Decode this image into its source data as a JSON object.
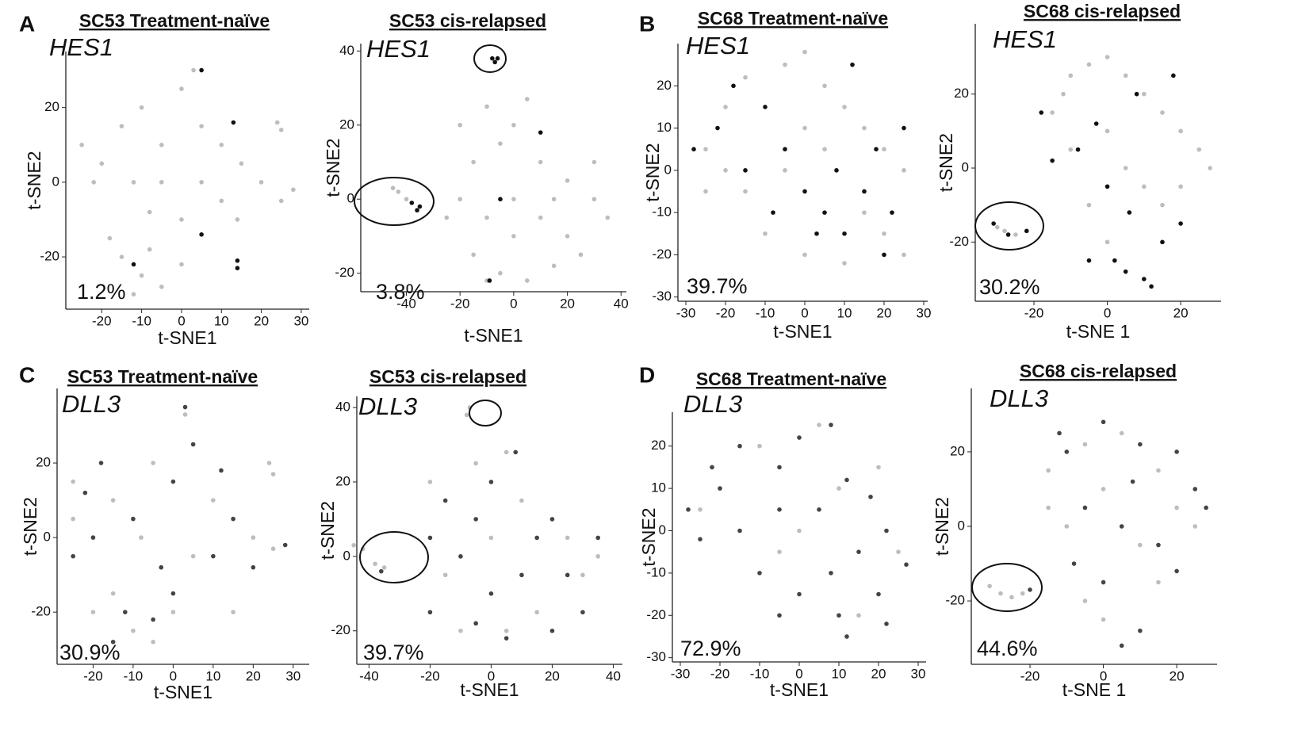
{
  "chart_data": [
    {
      "type": "scatter",
      "panel": "A",
      "title": "SC53 Treatment-naïve",
      "gene": "HES1",
      "annotation": "1.2%",
      "xlabel": "t-SNE1",
      "ylabel": "t-SNE2",
      "xlim": [
        -29,
        32
      ],
      "ylim": [
        -34,
        35
      ],
      "xticks": [
        -20,
        -10,
        0,
        10,
        20,
        30
      ],
      "yticks": [
        -20,
        0,
        20
      ],
      "series": [
        {
          "color": "#bdbdbd",
          "x": [
            -25,
            -20,
            -15,
            -10,
            -5,
            0,
            3,
            5,
            10,
            15,
            20,
            25,
            28,
            -22,
            -12,
            -5,
            5,
            10,
            -8,
            0,
            24,
            25,
            -15,
            -10,
            -5,
            -18,
            -8,
            0,
            -12,
            14
          ],
          "values": [
            10,
            5,
            15,
            20,
            10,
            25,
            30,
            15,
            10,
            5,
            0,
            -5,
            -2,
            0,
            0,
            0,
            0,
            -5,
            -8,
            -10,
            16,
            14,
            -20,
            -25,
            -28,
            -15,
            -18,
            -22,
            -30,
            -10
          ]
        },
        {
          "color": "#111111",
          "x": [
            14,
            14,
            5,
            -12,
            13,
            5
          ],
          "values": [
            -21,
            -23,
            30,
            -22,
            16,
            -14
          ]
        }
      ]
    },
    {
      "type": "scatter",
      "title": "SC53 cis-relapsed",
      "gene": "HES1",
      "annotation": "3.8%",
      "xlabel": "t-SNE1",
      "ylabel": "t-SNE2",
      "xlim": [
        -57,
        42
      ],
      "ylim": [
        -25,
        42
      ],
      "xticks": [
        -40,
        -20,
        0,
        20,
        40
      ],
      "yticks": [
        -20,
        0,
        20,
        40
      ],
      "series": [
        {
          "color": "#bdbdbd",
          "x": [
            -45,
            -43,
            -40,
            -20,
            -15,
            -10,
            -5,
            0,
            5,
            10,
            20,
            30,
            35,
            -20,
            -10,
            0,
            10,
            20,
            25,
            -15,
            -5,
            5,
            15,
            -10,
            30,
            -25,
            0,
            15
          ],
          "values": [
            3,
            2,
            0,
            20,
            10,
            25,
            15,
            20,
            27,
            10,
            5,
            0,
            -5,
            0,
            -5,
            0,
            -5,
            -10,
            -15,
            -15,
            -20,
            -22,
            -18,
            -22,
            10,
            -5,
            -10,
            0
          ]
        },
        {
          "color": "#111111",
          "x": [
            -8,
            -7,
            -6,
            -38,
            -36,
            -35,
            -9,
            10,
            -5
          ],
          "values": [
            38,
            37,
            38,
            -1,
            -3,
            -2,
            -22,
            18,
            0
          ]
        }
      ]
    },
    {
      "type": "scatter",
      "panel": "B",
      "title": "SC68 Treatment-naïve",
      "gene": "HES1",
      "annotation": "39.7%",
      "xlabel": "t-SNE1",
      "ylabel": "t-SNE2",
      "xlim": [
        -32,
        31
      ],
      "ylim": [
        -31,
        30
      ],
      "xticks": [
        -30,
        -20,
        -10,
        0,
        10,
        20,
        30
      ],
      "yticks": [
        -30,
        -20,
        -10,
        0,
        10,
        20
      ],
      "series": [
        {
          "color": "#bdbdbd",
          "x": [
            -25,
            -20,
            -15,
            -5,
            0,
            5,
            10,
            15,
            20,
            25,
            -25,
            -15,
            -5,
            5,
            15,
            20,
            -10,
            0,
            10,
            25,
            -20,
            0
          ],
          "values": [
            5,
            15,
            22,
            25,
            28,
            20,
            15,
            10,
            5,
            0,
            -5,
            -5,
            0,
            5,
            -10,
            -15,
            -15,
            -20,
            -22,
            -20,
            0,
            10
          ]
        },
        {
          "color": "#111111",
          "x": [
            -28,
            -22,
            -18,
            -10,
            -5,
            0,
            5,
            10,
            15,
            20,
            22,
            -15,
            8,
            12,
            -8,
            3,
            18,
            25
          ],
          "values": [
            5,
            10,
            20,
            15,
            5,
            -5,
            -10,
            -15,
            -5,
            -20,
            -10,
            0,
            0,
            25,
            -10,
            -15,
            5,
            10
          ]
        }
      ]
    },
    {
      "type": "scatter",
      "title": "SC68 cis-relapsed",
      "gene": "HES1",
      "annotation": "30.2%",
      "xlabel": "t-SNE 1",
      "ylabel": "t-SNE2",
      "xlim": [
        -36,
        31
      ],
      "ylim": [
        -36,
        39
      ],
      "xticks": [
        -20,
        0,
        20
      ],
      "yticks": [
        -20,
        0,
        20
      ],
      "series": [
        {
          "color": "#bdbdbd",
          "x": [
            -30,
            -28,
            -25,
            -15,
            -10,
            -5,
            0,
            5,
            10,
            15,
            20,
            25,
            -10,
            0,
            5,
            10,
            15,
            -5,
            0,
            20,
            -12,
            28
          ],
          "values": [
            -16,
            -17,
            -18,
            15,
            25,
            28,
            30,
            25,
            20,
            15,
            10,
            5,
            5,
            10,
            0,
            -5,
            -10,
            -10,
            -20,
            -5,
            20,
            0
          ]
        },
        {
          "color": "#111111",
          "x": [
            -31,
            -27,
            -22,
            -18,
            -8,
            0,
            2,
            5,
            10,
            12,
            15,
            20,
            -3,
            8,
            -15,
            6,
            18,
            -5
          ],
          "values": [
            -15,
            -18,
            -17,
            15,
            5,
            -5,
            -25,
            -28,
            -30,
            -32,
            -20,
            -15,
            12,
            20,
            2,
            -12,
            25,
            -25
          ]
        }
      ]
    },
    {
      "type": "scatter",
      "panel": "C",
      "title": "SC53 Treatment-naïve",
      "gene": "DLL3",
      "annotation": "30.9%",
      "xlabel": "t-SNE1",
      "ylabel": "t-SNE2",
      "xlim": [
        -29,
        34
      ],
      "ylim": [
        -34,
        40
      ],
      "xticks": [
        -20,
        -10,
        0,
        10,
        20,
        30
      ],
      "yticks": [
        -20,
        0,
        20
      ],
      "series": [
        {
          "color": "#bdbdbd",
          "x": [
            -25,
            -15,
            -5,
            3,
            10,
            20,
            25,
            24,
            25,
            -20,
            -10,
            -5,
            -15,
            0,
            15,
            -25,
            -8,
            5
          ],
          "values": [
            15,
            10,
            20,
            33,
            10,
            0,
            -3,
            20,
            17,
            -20,
            -25,
            -28,
            -15,
            -20,
            -20,
            5,
            0,
            -5
          ]
        },
        {
          "color": "#444444",
          "x": [
            -22,
            -18,
            -10,
            0,
            3,
            5,
            10,
            15,
            28,
            -20,
            -12,
            -15,
            -5,
            0,
            -25,
            12,
            -3,
            20
          ],
          "values": [
            12,
            20,
            5,
            15,
            35,
            25,
            -5,
            5,
            -2,
            0,
            -20,
            -28,
            -22,
            -15,
            -5,
            18,
            -8,
            -8
          ]
        }
      ]
    },
    {
      "type": "scatter",
      "title": "SC53 cis-relapsed",
      "gene": "DLL3",
      "annotation": "39.7%",
      "xlabel": "t-SNE1",
      "ylabel": "t-SNE2",
      "xlim": [
        -44,
        43
      ],
      "ylim": [
        -29,
        43
      ],
      "xticks": [
        -40,
        -20,
        0,
        20,
        40
      ],
      "yticks": [
        -20,
        0,
        20,
        40
      ],
      "series": [
        {
          "color": "#bdbdbd",
          "x": [
            -45,
            -42,
            -38,
            -35,
            -8,
            -7,
            -20,
            -5,
            5,
            10,
            25,
            30,
            -15,
            0,
            15,
            -10,
            5,
            35
          ],
          "values": [
            3,
            2,
            -2,
            -3,
            38,
            40,
            20,
            25,
            28,
            15,
            5,
            -5,
            -5,
            5,
            -15,
            -20,
            -20,
            0
          ]
        },
        {
          "color": "#444444",
          "x": [
            -36,
            -20,
            -15,
            -5,
            0,
            8,
            15,
            20,
            25,
            30,
            35,
            -10,
            0,
            10,
            5,
            -5,
            20,
            -20
          ],
          "values": [
            -4,
            5,
            15,
            10,
            20,
            28,
            5,
            10,
            -5,
            -15,
            5,
            0,
            -10,
            -5,
            -22,
            -18,
            -20,
            -15
          ]
        }
      ]
    },
    {
      "type": "scatter",
      "panel": "D",
      "title": "SC68 Treatment-naïve",
      "gene": "DLL3",
      "annotation": "72.9%",
      "xlabel": "t-SNE1",
      "ylabel": "t-SNE2",
      "xlim": [
        -32,
        32
      ],
      "ylim": [
        -31,
        28
      ],
      "xticks": [
        -30,
        -20,
        -10,
        0,
        10,
        20,
        30
      ],
      "yticks": [
        -30,
        -20,
        -10,
        0,
        10,
        20
      ],
      "series": [
        {
          "color": "#bdbdbd",
          "x": [
            -25,
            -10,
            5,
            20,
            25,
            0,
            15,
            -5,
            10
          ],
          "values": [
            5,
            20,
            25,
            15,
            -5,
            0,
            -20,
            -5,
            10
          ]
        },
        {
          "color": "#444444",
          "x": [
            -28,
            -22,
            -15,
            -5,
            0,
            8,
            12,
            18,
            22,
            27,
            -25,
            -15,
            -5,
            5,
            15,
            20,
            -10,
            0,
            10,
            22,
            -20,
            8,
            12,
            -5
          ],
          "values": [
            5,
            15,
            20,
            15,
            22,
            25,
            12,
            8,
            0,
            -8,
            -2,
            0,
            5,
            5,
            -5,
            -15,
            -10,
            -15,
            -20,
            -22,
            10,
            -10,
            -25,
            -20
          ]
        }
      ]
    },
    {
      "type": "scatter",
      "title": "SC68 cis-relapsed",
      "gene": "DLL3",
      "annotation": "44.6%",
      "xlabel": "t-SNE 1",
      "ylabel": "t-SNE2",
      "xlim": [
        -36,
        31
      ],
      "ylim": [
        -37,
        37
      ],
      "xticks": [
        -20,
        0,
        20
      ],
      "yticks": [
        -20,
        0,
        20
      ],
      "series": [
        {
          "color": "#bdbdbd",
          "x": [
            -31,
            -28,
            -25,
            -22,
            -15,
            -5,
            5,
            15,
            20,
            -10,
            0,
            10,
            -5,
            15,
            0,
            25,
            -15
          ],
          "values": [
            -16,
            -18,
            -19,
            -18,
            15,
            22,
            25,
            15,
            5,
            0,
            10,
            -5,
            -20,
            -15,
            -25,
            0,
            5
          ]
        },
        {
          "color": "#444444",
          "x": [
            -20,
            -10,
            0,
            10,
            20,
            25,
            -5,
            5,
            15,
            -8,
            0,
            10,
            5,
            20,
            -12,
            8,
            28
          ],
          "values": [
            -17,
            20,
            28,
            22,
            20,
            10,
            5,
            0,
            -5,
            -10,
            -15,
            -28,
            -32,
            -12,
            25,
            12,
            5
          ]
        }
      ]
    }
  ]
}
